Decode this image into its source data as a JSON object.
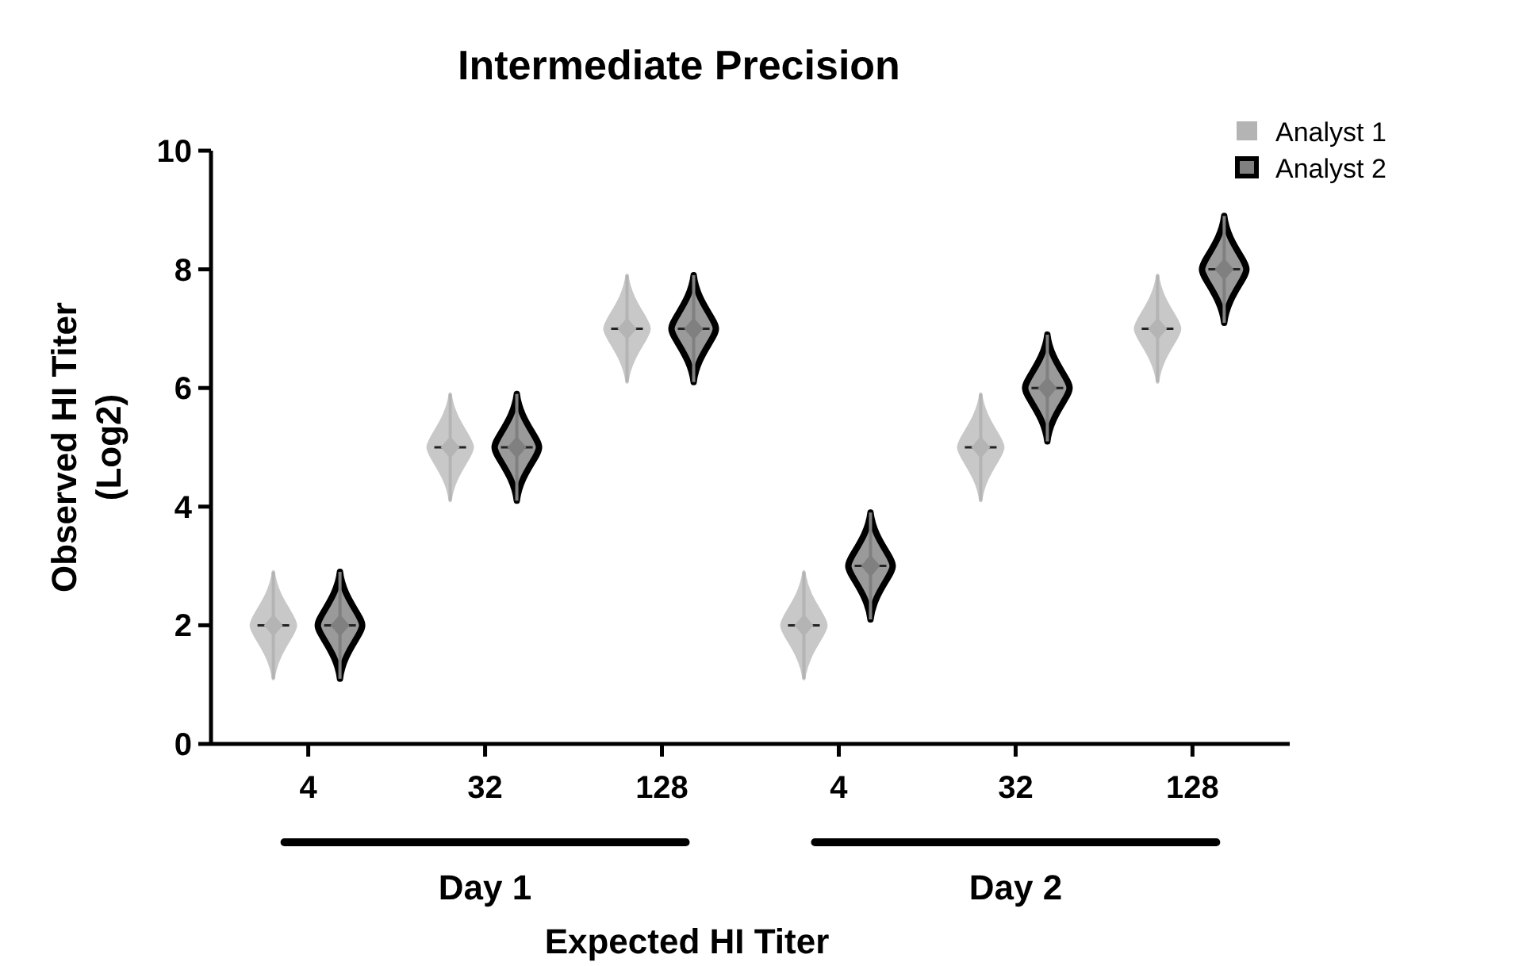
{
  "chart_data": {
    "type": "scatter",
    "title": "Intermediate Precision",
    "xlabel": "Expected HI Titer",
    "ylabel": "Observed HI Titer\n(Log2)",
    "categories": [
      "4",
      "32",
      "128",
      "4",
      "32",
      "128"
    ],
    "series": [
      {
        "name": "Analyst 1",
        "color": "#b4b4b4",
        "values": [
          2,
          5,
          7,
          2,
          5,
          7
        ],
        "errors": [
          0.9,
          0.9,
          0.9,
          0.9,
          0.9,
          0.9
        ]
      },
      {
        "name": "Analyst 2",
        "color": "#808080",
        "values": [
          2,
          5,
          7,
          3,
          6,
          8
        ],
        "errors": [
          0.9,
          0.9,
          0.9,
          0.9,
          0.9,
          0.9
        ]
      }
    ],
    "ylim": [
      0,
      10
    ],
    "yticks": [
      0,
      2,
      4,
      6,
      8,
      10
    ],
    "legend": "top right",
    "marker": "diamond",
    "annotations": [
      "Day 1",
      "Day 2"
    ]
  }
}
